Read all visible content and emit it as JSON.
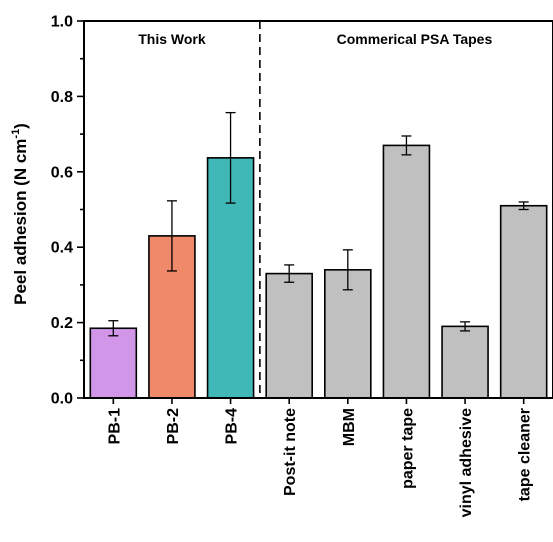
{
  "chart_data": {
    "type": "bar",
    "ylabel_main": "Peel adhesion (N cm",
    "ylabel_sup": "-1",
    "ylabel_close": ")",
    "ylim": [
      0.0,
      1.0
    ],
    "yticks": [
      "0.0",
      "0.2",
      "0.4",
      "0.6",
      "0.8",
      "1.0"
    ],
    "groups": [
      {
        "label": "This Work"
      },
      {
        "label": "Commerical PSA Tapes"
      }
    ],
    "categories": [
      "PB-1",
      "PB-2",
      "PB-4",
      "Post-it note",
      "MBM",
      "paper tape",
      "vinyl adhesive",
      "tape cleaner"
    ],
    "values": [
      0.185,
      0.43,
      0.637,
      0.33,
      0.34,
      0.67,
      0.19,
      0.51
    ],
    "errors": [
      0.02,
      0.093,
      0.12,
      0.023,
      0.053,
      0.025,
      0.012,
      0.01
    ],
    "colors": [
      "#d296e8",
      "#f0886a",
      "#41b8b8",
      "#c0c0c0",
      "#c0c0c0",
      "#c0c0c0",
      "#c0c0c0",
      "#c0c0c0"
    ],
    "divider_after_index": 2
  }
}
